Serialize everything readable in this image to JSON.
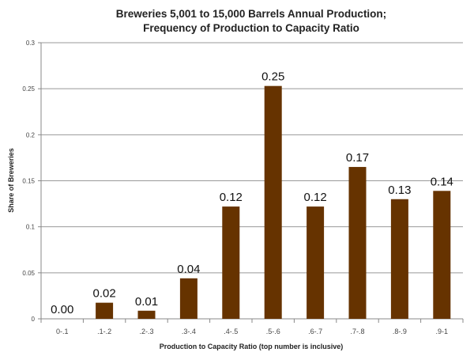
{
  "chart_data": {
    "type": "bar",
    "title": [
      "Breweries 5,001 to 15,000 Barrels Annual Production;",
      "Frequency of Production to Capacity Ratio"
    ],
    "xlabel": "Production to Capacity Ratio (top number is inclusive)",
    "ylabel": "Share of Breweries",
    "categories": [
      "0-.1",
      ".1-.2",
      ".2-.3",
      ".3-.4",
      ".4-.5",
      ".5-.6",
      ".6-.7",
      ".7-.8",
      ".8-.9",
      ".9-1"
    ],
    "values": [
      0,
      0.0175,
      0.0088,
      0.044,
      0.122,
      0.253,
      0.122,
      0.165,
      0.13,
      0.139
    ],
    "data_labels": [
      "0.00",
      "0.02",
      "0.01",
      "0.04",
      "0.12",
      "0.25",
      "0.12",
      "0.17",
      "0.13",
      "0.14"
    ],
    "ylim": [
      0,
      0.3
    ],
    "yticks": [
      "0",
      "0.05",
      "0.1",
      "0.15",
      "0.2",
      "0.25",
      "0.3"
    ],
    "grid": true,
    "legend": "none",
    "bar_color": "#663300"
  }
}
